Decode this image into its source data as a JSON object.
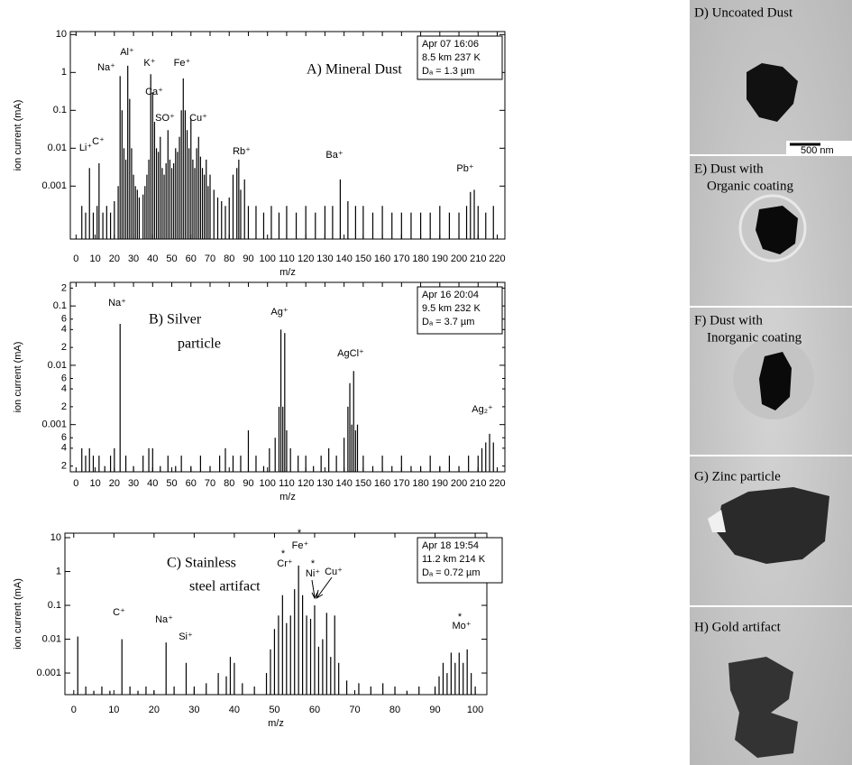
{
  "chart_data": [
    {
      "type": "spectrum",
      "title": [
        "A) Mineral Dust"
      ],
      "info": [
        "Apr 07  16:06",
        "8.5 km  237 K",
        "Dₐ = 1.3 µm"
      ],
      "ylabel": "ion current (mA)",
      "xlabel": "m/z",
      "log": true,
      "color": "#000000",
      "xlim": [
        -3,
        224
      ],
      "ylim": [
        4e-05,
        12
      ],
      "xticks": [
        0,
        10,
        20,
        30,
        40,
        50,
        60,
        70,
        80,
        90,
        100,
        110,
        120,
        130,
        140,
        150,
        160,
        170,
        180,
        190,
        200,
        210,
        220
      ],
      "yticks": [
        0.001,
        0.01,
        0.1,
        1,
        10
      ],
      "annotations": [
        "Na⁺",
        "Al⁺",
        "K⁺",
        "Ca⁺",
        "Fe⁺",
        "SO⁺",
        "Cu⁺",
        "Li⁺",
        "C⁺",
        "Rb⁺",
        "Ba⁺",
        "Pb⁺"
      ],
      "x": [
        3,
        5,
        7,
        9,
        11,
        12,
        14,
        16,
        18,
        20,
        22,
        23,
        24,
        25,
        26,
        27,
        28,
        29,
        30,
        31,
        32,
        33,
        35,
        36,
        37,
        38,
        39,
        40,
        41,
        42,
        43,
        44,
        45,
        46,
        47,
        48,
        49,
        50,
        51,
        52,
        53,
        54,
        55,
        56,
        57,
        58,
        59,
        60,
        61,
        62,
        63,
        64,
        65,
        66,
        67,
        68,
        69,
        70,
        72,
        74,
        76,
        78,
        80,
        82,
        84,
        85,
        86,
        88,
        90,
        94,
        98,
        102,
        106,
        110,
        115,
        120,
        125,
        130,
        134,
        138,
        142,
        146,
        150,
        155,
        160,
        165,
        170,
        175,
        180,
        185,
        190,
        195,
        200,
        204,
        206,
        208,
        210,
        214,
        218
      ],
      "values": [
        0.0003,
        0.0002,
        0.003,
        0.0002,
        0.0003,
        0.004,
        0.0002,
        0.0003,
        0.0002,
        0.0004,
        0.001,
        0.8,
        0.1,
        0.01,
        0.005,
        1.5,
        0.2,
        0.01,
        0.002,
        0.001,
        0.0008,
        0.0005,
        0.0006,
        0.001,
        0.002,
        0.005,
        0.9,
        0.3,
        0.05,
        0.01,
        0.008,
        0.02,
        0.003,
        0.002,
        0.004,
        0.03,
        0.005,
        0.003,
        0.004,
        0.01,
        0.008,
        0.02,
        0.1,
        0.7,
        0.1,
        0.03,
        0.01,
        0.06,
        0.005,
        0.003,
        0.01,
        0.02,
        0.006,
        0.003,
        0.002,
        0.005,
        0.001,
        0.002,
        0.0008,
        0.0005,
        0.0004,
        0.0003,
        0.0005,
        0.002,
        0.003,
        0.005,
        0.0008,
        0.0015,
        0.0003,
        0.0003,
        0.0002,
        0.0003,
        0.0002,
        0.0003,
        0.0002,
        0.0003,
        0.0002,
        0.0003,
        0.0003,
        0.0015,
        0.0004,
        0.0003,
        0.0003,
        0.0002,
        0.0003,
        0.0002,
        0.0002,
        0.0002,
        0.0002,
        0.0002,
        0.0003,
        0.0002,
        0.0002,
        0.0003,
        0.0007,
        0.0008,
        0.0003,
        0.0002,
        0.0003
      ]
    },
    {
      "type": "spectrum",
      "title": [
        "B) Silver",
        "particle"
      ],
      "info": [
        "Apr 16  20:04",
        "9.5 km  232 K",
        "Dₐ = 3.7 µm"
      ],
      "ylabel": "ion current (mA)",
      "xlabel": "m/z",
      "log": true,
      "color": "#000000",
      "xlim": [
        -3,
        224
      ],
      "ylim": [
        0.00016,
        0.25
      ],
      "xticks": [
        0,
        10,
        20,
        30,
        40,
        50,
        60,
        70,
        80,
        90,
        100,
        110,
        120,
        130,
        140,
        150,
        160,
        170,
        180,
        190,
        200,
        210,
        220
      ],
      "yticks": [
        {
          "value": 0.0002,
          "label": "2"
        },
        {
          "value": 0.0004,
          "label": "4"
        },
        {
          "value": 0.0006,
          "label": "6"
        },
        0.001,
        {
          "value": 0.002,
          "label": "2"
        },
        {
          "value": 0.004,
          "label": "4"
        },
        {
          "value": 0.006,
          "label": "6"
        },
        0.01,
        {
          "value": 0.02,
          "label": "2"
        },
        {
          "value": 0.04,
          "label": "4"
        },
        {
          "value": 0.06,
          "label": "6"
        },
        0.1,
        {
          "value": 0.2,
          "label": "2"
        }
      ],
      "annotations": [
        "Na⁺",
        "Ag⁺",
        "AgCl⁺",
        "Ag₂⁺"
      ],
      "x": [
        3,
        5,
        7,
        9,
        12,
        15,
        18,
        20,
        23,
        26,
        30,
        35,
        38,
        40,
        44,
        48,
        52,
        55,
        60,
        65,
        70,
        75,
        78,
        82,
        86,
        90,
        94,
        98,
        101,
        104,
        106,
        107,
        108,
        109,
        110,
        112,
        116,
        120,
        124,
        128,
        132,
        136,
        140,
        142,
        143,
        144,
        145,
        146,
        147,
        150,
        155,
        160,
        165,
        170,
        175,
        180,
        185,
        190,
        195,
        200,
        205,
        210,
        212,
        214,
        216,
        218
      ],
      "values": [
        0.0004,
        0.0003,
        0.0004,
        0.0003,
        0.0003,
        0.0002,
        0.0003,
        0.0004,
        0.05,
        0.0003,
        0.0002,
        0.0003,
        0.0004,
        0.0004,
        0.0002,
        0.0003,
        0.0002,
        0.0003,
        0.0002,
        0.0003,
        0.0002,
        0.0003,
        0.0004,
        0.0003,
        0.0003,
        0.0008,
        0.0003,
        0.0002,
        0.0004,
        0.0006,
        0.002,
        0.04,
        0.002,
        0.035,
        0.0008,
        0.0004,
        0.0003,
        0.0003,
        0.0002,
        0.0003,
        0.0004,
        0.0003,
        0.0006,
        0.002,
        0.005,
        0.001,
        0.008,
        0.0008,
        0.001,
        0.0003,
        0.0002,
        0.0003,
        0.0002,
        0.0003,
        0.0002,
        0.0002,
        0.0003,
        0.0002,
        0.0003,
        0.0002,
        0.0003,
        0.0003,
        0.0004,
        0.0005,
        0.0007,
        0.0005
      ]
    },
    {
      "type": "spectrum",
      "title": [
        "C) Stainless",
        "steel artifact"
      ],
      "info": [
        "Apr 18  19:54",
        "11.2 km  214 K",
        "Dₐ = 0.72 µm"
      ],
      "ylabel": "ion current (mA)",
      "xlabel": "m/z",
      "log": true,
      "color": "#000000",
      "xlim": [
        -2.2,
        102.9
      ],
      "ylim": [
        0.00023,
        13.6
      ],
      "xticks": [
        0,
        10,
        20,
        30,
        40,
        50,
        60,
        70,
        80,
        90,
        100
      ],
      "yticks": [
        0.001,
        0.01,
        0.1,
        1,
        10
      ],
      "annotations": [
        "C⁺",
        "Na⁺",
        "Si⁺",
        "Cr⁺",
        "Fe⁺",
        "Ni⁺",
        "Cu⁺",
        "Mo⁺",
        "*",
        "*",
        "*",
        "*"
      ],
      "x": [
        1,
        3,
        5,
        7,
        9,
        12,
        14,
        16,
        18,
        20,
        23,
        25,
        28,
        30,
        33,
        36,
        38,
        39,
        40,
        42,
        45,
        48,
        49,
        50,
        51,
        52,
        53,
        54,
        55,
        56,
        57,
        58,
        59,
        60,
        61,
        62,
        63,
        64,
        65,
        66,
        68,
        71,
        74,
        77,
        80,
        83,
        86,
        90,
        91,
        92,
        93,
        94,
        95,
        96,
        97,
        98,
        99,
        100
      ],
      "values": [
        0.012,
        0.0004,
        0.0003,
        0.0004,
        0.0003,
        0.01,
        0.0004,
        0.0003,
        0.0004,
        0.0003,
        0.008,
        0.0004,
        0.002,
        0.0004,
        0.0005,
        0.001,
        0.0008,
        0.003,
        0.002,
        0.0005,
        0.0004,
        0.001,
        0.005,
        0.02,
        0.05,
        0.2,
        0.03,
        0.05,
        0.3,
        1.5,
        0.2,
        0.05,
        0.04,
        0.1,
        0.006,
        0.01,
        0.06,
        0.003,
        0.05,
        0.002,
        0.0006,
        0.0005,
        0.0004,
        0.0005,
        0.0004,
        0.0003,
        0.0004,
        0.0004,
        0.0008,
        0.002,
        0.001,
        0.004,
        0.002,
        0.004,
        0.002,
        0.005,
        0.001,
        0.0004
      ]
    }
  ],
  "images": [
    {
      "label": [
        "D) Uncoated Dust"
      ],
      "scale_bar": "500 nm"
    },
    {
      "label": [
        "E) Dust with",
        "Organic coating"
      ]
    },
    {
      "label": [
        "F) Dust with",
        "Inorganic coating"
      ]
    },
    {
      "label": [
        "G) Zinc particle"
      ]
    },
    {
      "label": [
        "H) Gold artifact"
      ]
    }
  ]
}
